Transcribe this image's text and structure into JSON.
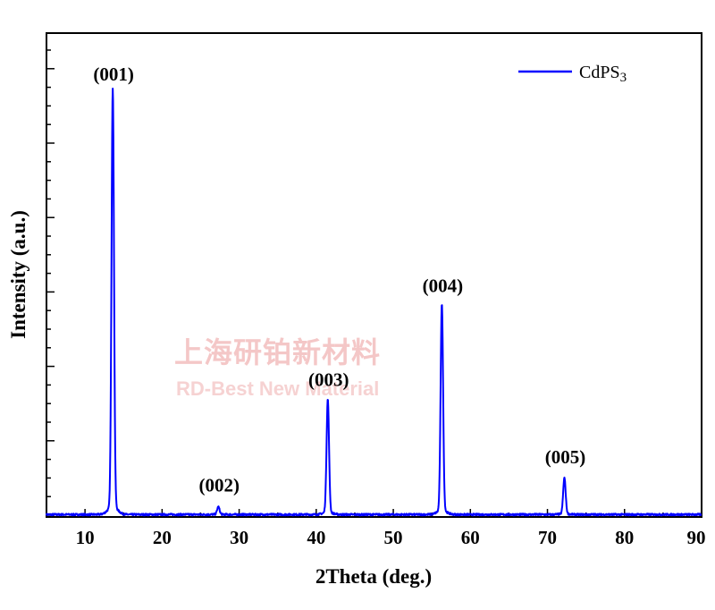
{
  "chart_data": {
    "type": "line",
    "title": "",
    "xlabel": "2Theta (deg.)",
    "ylabel": "Intensity (a.u.)",
    "xlim": [
      5,
      90
    ],
    "ylim": [
      0,
      100
    ],
    "x_ticks": [
      10,
      20,
      30,
      40,
      50,
      60,
      70,
      80,
      90
    ],
    "x_tick_labels": [
      "10",
      "20",
      "30",
      "40",
      "50",
      "60",
      "70",
      "80",
      "90"
    ],
    "y_tick_labels_shown": false,
    "grid": false,
    "legend": {
      "position": "top-right",
      "entries": [
        "CdPS"
      ],
      "subscript": "3"
    },
    "series": [
      {
        "name": "CdPS3",
        "color": "#0000ff",
        "peaks": [
          {
            "x": 13.6,
            "y": 100
          },
          {
            "x": 27.3,
            "y": 1.8
          },
          {
            "x": 41.5,
            "y": 27
          },
          {
            "x": 56.3,
            "y": 49.5
          },
          {
            "x": 72.2,
            "y": 8.6
          }
        ]
      }
    ],
    "annotations": [
      {
        "text": "(001)",
        "x": 13.6,
        "y": 100
      },
      {
        "text": "(002)",
        "x": 27.3,
        "y": 1.8
      },
      {
        "text": "(003)",
        "x": 41.5,
        "y": 27
      },
      {
        "text": "(004)",
        "x": 56.3,
        "y": 49.5
      },
      {
        "text": "(005)",
        "x": 72.2,
        "y": 8.6
      }
    ]
  },
  "watermark": {
    "line1": "上海研铂新材料",
    "line2": "RD-Best New Material"
  }
}
